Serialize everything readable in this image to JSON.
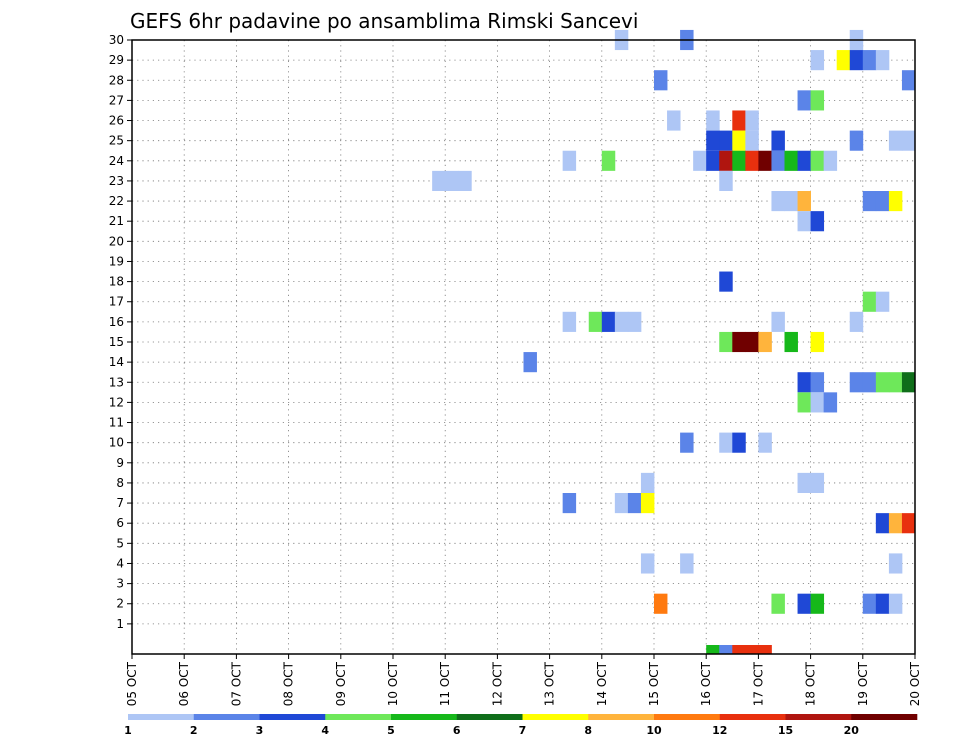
{
  "chart_data": {
    "type": "heatmap",
    "title": "GEFS 6hr padavine po ansamblima Rimski Sancevi",
    "xlabel": "",
    "ylabel": "",
    "x_ticks": [
      "05 OCT",
      "06 OCT",
      "07 OCT",
      "08 OCT",
      "09 OCT",
      "10 OCT",
      "11 OCT",
      "12 OCT",
      "13 OCT",
      "14 OCT",
      "15 OCT",
      "16 OCT",
      "17 OCT",
      "18 OCT",
      "19 OCT",
      "20 OCT"
    ],
    "y_ticks": [
      "1",
      "2",
      "3",
      "4",
      "5",
      "6",
      "7",
      "8",
      "9",
      "10",
      "11",
      "12",
      "13",
      "14",
      "15",
      "16",
      "17",
      "18",
      "19",
      "20",
      "21",
      "22",
      "23",
      "24",
      "25",
      "26",
      "27",
      "28",
      "29",
      "30"
    ],
    "xlim": [
      0,
      60
    ],
    "ylim": [
      0,
      30
    ],
    "grid": true,
    "color_scale": {
      "labels": [
        "1",
        "2",
        "3",
        "4",
        "5",
        "6",
        "7",
        "8",
        "10",
        "12",
        "15",
        "20"
      ],
      "colors": [
        "#aec6f5",
        "#5b84e8",
        "#1f48d6",
        "#6ee85a",
        "#16b81a",
        "#0f6e1a",
        "#ffff00",
        "#ffb43c",
        "#ff7a10",
        "#e8300e",
        "#b0150f",
        "#700000"
      ]
    },
    "cells": [
      {
        "y": 30,
        "x": 37.5,
        "level": 1
      },
      {
        "y": 30,
        "x": 42.5,
        "level": 2
      },
      {
        "y": 30,
        "x": 55.5,
        "level": 1
      },
      {
        "y": 29,
        "x": 52.5,
        "level": 1
      },
      {
        "y": 29,
        "x": 54.5,
        "level": 7
      },
      {
        "y": 29,
        "x": 55.5,
        "level": 3
      },
      {
        "y": 29,
        "x": 56.5,
        "level": 2
      },
      {
        "y": 29,
        "x": 57.5,
        "level": 1
      },
      {
        "y": 28,
        "x": 40.5,
        "level": 2
      },
      {
        "y": 28,
        "x": 59.5,
        "level": 2
      },
      {
        "y": 27,
        "x": 51.5,
        "level": 2
      },
      {
        "y": 27,
        "x": 52.5,
        "level": 4
      },
      {
        "y": 26,
        "x": 41.5,
        "level": 1
      },
      {
        "y": 26,
        "x": 44.5,
        "level": 1
      },
      {
        "y": 26,
        "x": 46.5,
        "level": 10
      },
      {
        "y": 26,
        "x": 47.5,
        "level": 1
      },
      {
        "y": 25,
        "x": 44.5,
        "level": 3
      },
      {
        "y": 25,
        "x": 45.5,
        "level": 3
      },
      {
        "y": 25,
        "x": 46.5,
        "level": 7
      },
      {
        "y": 25,
        "x": 47.5,
        "level": 1
      },
      {
        "y": 25,
        "x": 49.5,
        "level": 3
      },
      {
        "y": 25,
        "x": 55.5,
        "level": 2
      },
      {
        "y": 25,
        "x": 58.5,
        "level": 1
      },
      {
        "y": 25,
        "x": 59.5,
        "level": 1
      },
      {
        "y": 24,
        "x": 33.5,
        "level": 1
      },
      {
        "y": 24,
        "x": 36.5,
        "level": 4
      },
      {
        "y": 24,
        "x": 43.5,
        "level": 1
      },
      {
        "y": 24,
        "x": 44.5,
        "level": 3
      },
      {
        "y": 24,
        "x": 45.5,
        "level": 11
      },
      {
        "y": 24,
        "x": 46.5,
        "level": 5
      },
      {
        "y": 24,
        "x": 47.5,
        "level": 10
      },
      {
        "y": 24,
        "x": 48.5,
        "level": 12
      },
      {
        "y": 24,
        "x": 49.5,
        "level": 2
      },
      {
        "y": 24,
        "x": 50.5,
        "level": 5
      },
      {
        "y": 24,
        "x": 51.5,
        "level": 3
      },
      {
        "y": 24,
        "x": 52.5,
        "level": 4
      },
      {
        "y": 24,
        "x": 53.5,
        "level": 1
      },
      {
        "y": 23,
        "x": 23.5,
        "level": 1
      },
      {
        "y": 23,
        "x": 24.5,
        "level": 1
      },
      {
        "y": 23,
        "x": 25.5,
        "level": 1
      },
      {
        "y": 23,
        "x": 45.5,
        "level": 1
      },
      {
        "y": 22,
        "x": 49.5,
        "level": 1
      },
      {
        "y": 22,
        "x": 50.5,
        "level": 1
      },
      {
        "y": 22,
        "x": 51.5,
        "level": 8
      },
      {
        "y": 22,
        "x": 56.5,
        "level": 2
      },
      {
        "y": 22,
        "x": 57.5,
        "level": 2
      },
      {
        "y": 22,
        "x": 58.5,
        "level": 7
      },
      {
        "y": 21,
        "x": 51.5,
        "level": 1
      },
      {
        "y": 21,
        "x": 52.5,
        "level": 3
      },
      {
        "y": 18,
        "x": 45.5,
        "level": 3
      },
      {
        "y": 17,
        "x": 56.5,
        "level": 4
      },
      {
        "y": 17,
        "x": 57.5,
        "level": 1
      },
      {
        "y": 16,
        "x": 33.5,
        "level": 1
      },
      {
        "y": 16,
        "x": 35.5,
        "level": 4
      },
      {
        "y": 16,
        "x": 36.5,
        "level": 3
      },
      {
        "y": 16,
        "x": 37.5,
        "level": 1
      },
      {
        "y": 16,
        "x": 38.5,
        "level": 1
      },
      {
        "y": 16,
        "x": 49.5,
        "level": 1
      },
      {
        "y": 16,
        "x": 55.5,
        "level": 1
      },
      {
        "y": 15,
        "x": 45.5,
        "level": 4
      },
      {
        "y": 15,
        "x": 46.5,
        "level": 12
      },
      {
        "y": 15,
        "x": 47.5,
        "level": 12
      },
      {
        "y": 15,
        "x": 48.5,
        "level": 8
      },
      {
        "y": 15,
        "x": 50.5,
        "level": 5
      },
      {
        "y": 15,
        "x": 52.5,
        "level": 7
      },
      {
        "y": 14,
        "x": 30.5,
        "level": 2
      },
      {
        "y": 13,
        "x": 51.5,
        "level": 3
      },
      {
        "y": 13,
        "x": 52.5,
        "level": 2
      },
      {
        "y": 13,
        "x": 55.5,
        "level": 2
      },
      {
        "y": 13,
        "x": 56.5,
        "level": 2
      },
      {
        "y": 13,
        "x": 57.5,
        "level": 4
      },
      {
        "y": 13,
        "x": 58.5,
        "level": 4
      },
      {
        "y": 13,
        "x": 59.5,
        "level": 6
      },
      {
        "y": 12,
        "x": 51.5,
        "level": 4
      },
      {
        "y": 12,
        "x": 52.5,
        "level": 1
      },
      {
        "y": 12,
        "x": 53.5,
        "level": 2
      },
      {
        "y": 10,
        "x": 42.5,
        "level": 2
      },
      {
        "y": 10,
        "x": 45.5,
        "level": 1
      },
      {
        "y": 10,
        "x": 46.5,
        "level": 3
      },
      {
        "y": 10,
        "x": 48.5,
        "level": 1
      },
      {
        "y": 8,
        "x": 39.5,
        "level": 1
      },
      {
        "y": 8,
        "x": 51.5,
        "level": 1
      },
      {
        "y": 8,
        "x": 52.5,
        "level": 1
      },
      {
        "y": 7,
        "x": 33.5,
        "level": 2
      },
      {
        "y": 7,
        "x": 37.5,
        "level": 1
      },
      {
        "y": 7,
        "x": 38.5,
        "level": 2
      },
      {
        "y": 7,
        "x": 39.5,
        "level": 7
      },
      {
        "y": 6,
        "x": 57.5,
        "level": 3
      },
      {
        "y": 6,
        "x": 58.5,
        "level": 8
      },
      {
        "y": 6,
        "x": 59.5,
        "level": 10
      },
      {
        "y": 4,
        "x": 39.5,
        "level": 1
      },
      {
        "y": 4,
        "x": 42.5,
        "level": 1
      },
      {
        "y": 4,
        "x": 58.5,
        "level": 1
      },
      {
        "y": 2,
        "x": 40.5,
        "level": 9
      },
      {
        "y": 2,
        "x": 49.5,
        "level": 4
      },
      {
        "y": 2,
        "x": 51.5,
        "level": 3
      },
      {
        "y": 2,
        "x": 52.5,
        "level": 5
      },
      {
        "y": 2,
        "x": 56.5,
        "level": 2
      },
      {
        "y": 2,
        "x": 57.5,
        "level": 3
      },
      {
        "y": 2,
        "x": 58.5,
        "level": 1
      }
    ],
    "bottom_strip": [
      {
        "x": 44.5,
        "level": 5
      },
      {
        "x": 45.5,
        "level": 2
      },
      {
        "x": 46.5,
        "level": 10
      },
      {
        "x": 47.5,
        "level": 10
      },
      {
        "x": 48.5,
        "level": 10
      }
    ]
  }
}
